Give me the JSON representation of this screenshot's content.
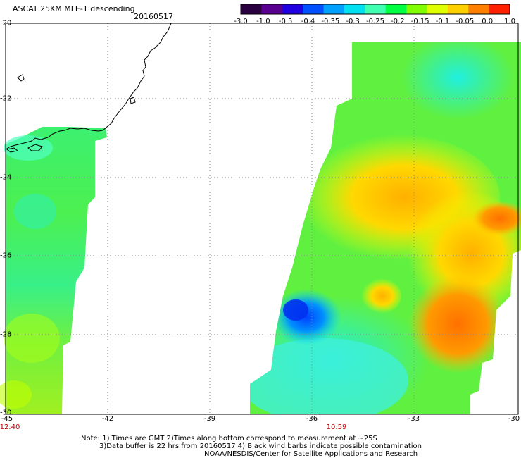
{
  "header": {
    "title": "ASCAT 25KM MLE-1 descending",
    "date": "20160517"
  },
  "colorbar": {
    "labels": [
      "-3.0",
      "-1.0",
      "-0.5",
      "-0.4",
      "-0.35",
      "-0.3",
      "-0.25",
      "-0.2",
      "-0.15",
      "-0.1",
      "-0.05",
      "0.0",
      "1.0"
    ],
    "colors": [
      "#2a0040",
      "#5a0090",
      "#2000e0",
      "#0050ff",
      "#00a0ff",
      "#00e0f0",
      "#40ffb0",
      "#00ff40",
      "#80ff00",
      "#e0ff00",
      "#ffd000",
      "#ff8000",
      "#ff2000"
    ]
  },
  "axes": {
    "lat_labels": [
      "-20",
      "-22",
      "-24",
      "-26",
      "-28",
      "-30"
    ],
    "lon_labels": [
      "-45",
      "-42",
      "-39",
      "-36",
      "-33",
      "-30"
    ]
  },
  "pass_times": [
    "12:40",
    "10:59"
  ],
  "notes": {
    "line1": "Note: 1) Times are GMT 2)Times along bottom correspond to measurement at ~25S",
    "line2": "3)Data buffer is 22 hrs from 20160517 4) Black wind barbs indicate possible contamination",
    "line3": "NOAA/NESDIS/Center for Satellite Applications and Research"
  }
}
